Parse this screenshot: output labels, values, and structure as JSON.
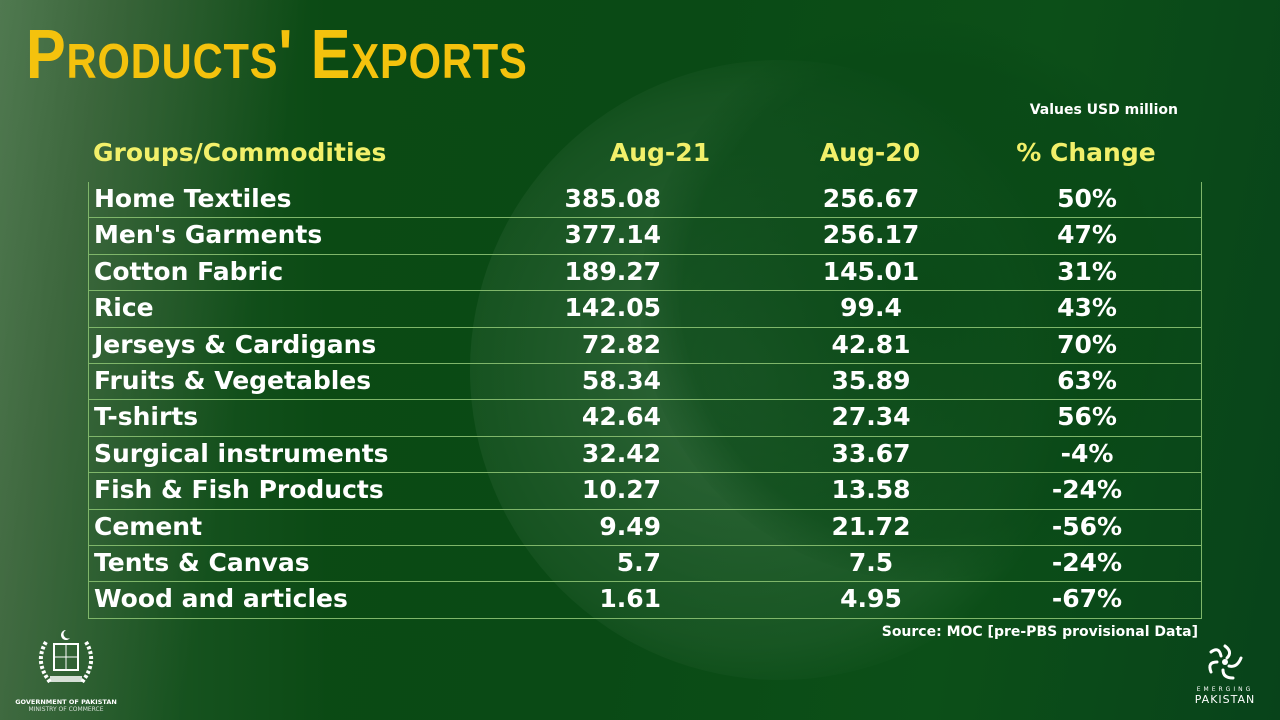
{
  "title": "Products' Exports",
  "units_note": "Values USD million",
  "source": "Source: MOC [pre-PBS provisional Data]",
  "logos": {
    "government_line1": "GOVERNMENT OF PAKISTAN",
    "government_line2": "MINISTRY OF COMMERCE",
    "emerging_line1": "EMERGING",
    "emerging_line2": "PAKISTAN"
  },
  "colors": {
    "title": "#f4c20d",
    "header": "#f2f06a",
    "background": "#0a4a15",
    "grid": "#7fb66a"
  },
  "chart_data": {
    "type": "table",
    "columns": [
      "Groups/Commodities",
      "Aug-21",
      "Aug-20",
      "% Change"
    ],
    "rows": [
      [
        "Home Textiles",
        "385.08",
        "256.67",
        "50%"
      ],
      [
        "Men's Garments",
        "377.14",
        "256.17",
        "47%"
      ],
      [
        "Cotton Fabric",
        "189.27",
        "145.01",
        "31%"
      ],
      [
        "Rice",
        "142.05",
        "99.4",
        "43%"
      ],
      [
        "Jerseys & Cardigans",
        "72.82",
        "42.81",
        "70%"
      ],
      [
        "Fruits & Vegetables",
        "58.34",
        "35.89",
        "63%"
      ],
      [
        "T-shirts",
        "42.64",
        "27.34",
        "56%"
      ],
      [
        "Surgical instruments",
        "32.42",
        "33.67",
        "-4%"
      ],
      [
        "Fish & Fish Products",
        "10.27",
        "13.58",
        "-24%"
      ],
      [
        "Cement",
        "9.49",
        "21.72",
        "-56%"
      ],
      [
        "Tents & Canvas",
        "5.7",
        "7.5",
        "-24%"
      ],
      [
        "Wood and articles",
        "1.61",
        "4.95",
        "-67%"
      ]
    ]
  }
}
